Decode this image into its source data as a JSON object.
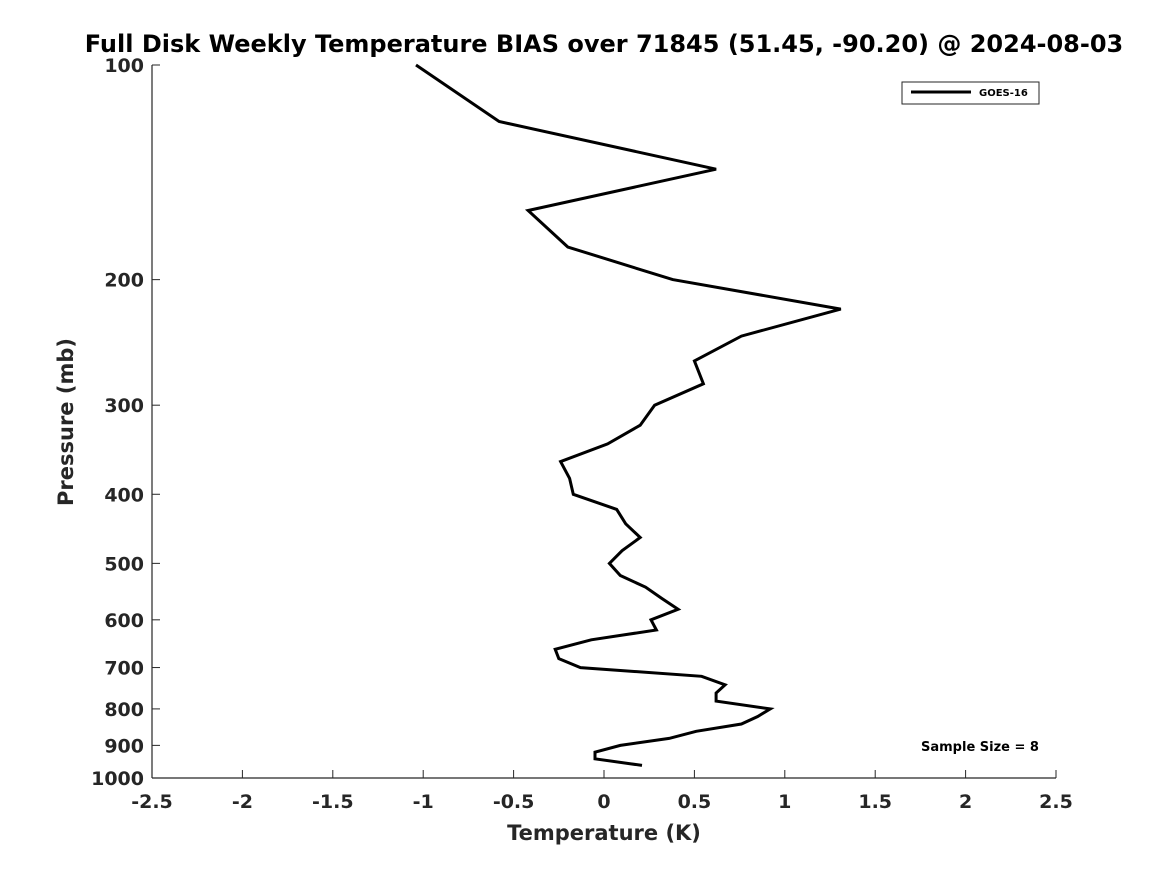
{
  "chart_data": {
    "type": "line",
    "title": "Full Disk Weekly Temperature BIAS over 71845 (51.45, -90.20) @ 2024-08-03",
    "xlabel": "Temperature (K)",
    "ylabel": "Pressure (mb)",
    "xlim": [
      -2.5,
      2.5
    ],
    "ylim": [
      100,
      1000
    ],
    "y_scale": "log",
    "y_direction": "reversed",
    "x_ticks": [
      -2.5,
      -2,
      -1.5,
      -1,
      -0.5,
      0,
      0.5,
      1,
      1.5,
      2,
      2.5
    ],
    "x_tick_labels": [
      "-2.5",
      "-2",
      "-1.5",
      "-1",
      "-0.5",
      "0",
      "0.5",
      "1",
      "1.5",
      "2",
      "2.5"
    ],
    "y_ticks": [
      100,
      200,
      300,
      400,
      500,
      600,
      700,
      800,
      900,
      1000
    ],
    "y_tick_labels": [
      "100",
      "200",
      "300",
      "400",
      "500",
      "600",
      "700",
      "800",
      "900",
      "1000"
    ],
    "grid": false,
    "legend_position": "top-right",
    "annotation": "Sample Size = 8",
    "series": [
      {
        "name": "GOES-16",
        "color": "#000000",
        "points": [
          {
            "x": -1.04,
            "p": 100
          },
          {
            "x": -0.58,
            "p": 120
          },
          {
            "x": 0.62,
            "p": 140
          },
          {
            "x": -0.42,
            "p": 160
          },
          {
            "x": -0.2,
            "p": 180
          },
          {
            "x": 0.38,
            "p": 200
          },
          {
            "x": 1.31,
            "p": 220
          },
          {
            "x": 0.76,
            "p": 240
          },
          {
            "x": 0.5,
            "p": 260
          },
          {
            "x": 0.55,
            "p": 280
          },
          {
            "x": 0.28,
            "p": 300
          },
          {
            "x": 0.2,
            "p": 320
          },
          {
            "x": 0.02,
            "p": 340
          },
          {
            "x": -0.24,
            "p": 360
          },
          {
            "x": -0.19,
            "p": 380
          },
          {
            "x": -0.17,
            "p": 400
          },
          {
            "x": 0.07,
            "p": 420
          },
          {
            "x": 0.12,
            "p": 440
          },
          {
            "x": 0.2,
            "p": 460
          },
          {
            "x": 0.1,
            "p": 480
          },
          {
            "x": 0.03,
            "p": 500
          },
          {
            "x": 0.09,
            "p": 520
          },
          {
            "x": 0.23,
            "p": 540
          },
          {
            "x": 0.32,
            "p": 560
          },
          {
            "x": 0.41,
            "p": 580
          },
          {
            "x": 0.26,
            "p": 600
          },
          {
            "x": 0.29,
            "p": 620
          },
          {
            "x": -0.07,
            "p": 640
          },
          {
            "x": -0.27,
            "p": 660
          },
          {
            "x": -0.25,
            "p": 680
          },
          {
            "x": -0.13,
            "p": 700
          },
          {
            "x": 0.54,
            "p": 720
          },
          {
            "x": 0.67,
            "p": 740
          },
          {
            "x": 0.62,
            "p": 760
          },
          {
            "x": 0.62,
            "p": 780
          },
          {
            "x": 0.92,
            "p": 800
          },
          {
            "x": 0.85,
            "p": 820
          },
          {
            "x": 0.76,
            "p": 840
          },
          {
            "x": 0.51,
            "p": 860
          },
          {
            "x": 0.36,
            "p": 880
          },
          {
            "x": 0.09,
            "p": 900
          },
          {
            "x": -0.05,
            "p": 920
          },
          {
            "x": -0.05,
            "p": 940
          },
          {
            "x": 0.21,
            "p": 960
          }
        ]
      }
    ]
  }
}
